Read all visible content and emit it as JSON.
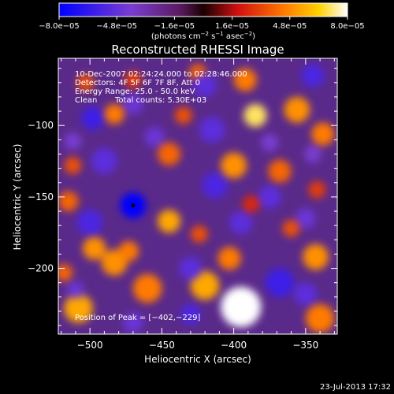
{
  "chart_data": {
    "type": "heatmap",
    "title": "Reconstructed RHESSI Image",
    "xlabel": "Heliocentric X (arcsec)",
    "ylabel": "Heliocentric Y (arcsec)",
    "xlim": [
      -522,
      -328
    ],
    "ylim": [
      -246,
      -53
    ],
    "xticks": [
      -500,
      -450,
      -400,
      -350
    ],
    "xtick_labels": [
      "−500",
      "−450",
      "−400",
      "−350"
    ],
    "yticks": [
      -100,
      -150,
      -200
    ],
    "ytick_labels": [
      "−100",
      "−150",
      "−200"
    ],
    "colorbar": {
      "min": -8e-05,
      "max": 8e-05,
      "tick_labels": [
        "−8.0e−05",
        "−4.8e−05",
        "−1.6e−05",
        "1.6e−05",
        "4.8e−05",
        "8.0e−05"
      ],
      "tick_values": [
        -8e-05,
        -4.8e-05,
        -1.6e-05,
        1.6e-05,
        4.8e-05,
        8e-05
      ],
      "units_main": "(photons cm",
      "units_sup1": "−2",
      "units_mid": " s",
      "units_sup2": "−1",
      "units_end": " asec",
      "units_sup3": "−2",
      "units_close": ")"
    },
    "annotations": {
      "time_range": "10-Dec-2007 02:24:24.000 to 02:28:46.000",
      "detectors": "Detectors: 4F 5F 6F 7F 8F, Att 0",
      "energy": "Energy Range: 25.0 - 50.0 keV",
      "method": "Clean",
      "counts": "Total counts: 5.30E+03",
      "peak": "Position of Peak = [−402,−229]"
    },
    "blobs": [
      {
        "x": -395,
        "y": -227,
        "v": 8e-05,
        "r": 14
      },
      {
        "x": -420,
        "y": -212,
        "v": 5.5e-05,
        "r": 10
      },
      {
        "x": -403,
        "y": -193,
        "v": 4.5e-05,
        "r": 8
      },
      {
        "x": -460,
        "y": -214,
        "v": 4.5e-05,
        "r": 10
      },
      {
        "x": -483,
        "y": -196,
        "v": 5e-05,
        "r": 9
      },
      {
        "x": -497,
        "y": -186,
        "v": 5e-05,
        "r": 8
      },
      {
        "x": -508,
        "y": -228,
        "v": 5.5e-05,
        "r": 10
      },
      {
        "x": -518,
        "y": -203,
        "v": 4e-05,
        "r": 6
      },
      {
        "x": -473,
        "y": -188,
        "v": 4.5e-05,
        "r": 7
      },
      {
        "x": -385,
        "y": -93,
        "v": 7e-05,
        "r": 8
      },
      {
        "x": -356,
        "y": -89,
        "v": 5e-05,
        "r": 9
      },
      {
        "x": -338,
        "y": -106,
        "v": 4.5e-05,
        "r": 8
      },
      {
        "x": -392,
        "y": -68,
        "v": 4.5e-05,
        "r": 8
      },
      {
        "x": -483,
        "y": -92,
        "v": 4.5e-05,
        "r": 7
      },
      {
        "x": -435,
        "y": -93,
        "v": 3.5e-05,
        "r": 6
      },
      {
        "x": -445,
        "y": -120,
        "v": 4e-05,
        "r": 8
      },
      {
        "x": -400,
        "y": -128,
        "v": 5e-05,
        "r": 9
      },
      {
        "x": -368,
        "y": -132,
        "v": 4e-05,
        "r": 8
      },
      {
        "x": -342,
        "y": -145,
        "v": 3e-05,
        "r": 6
      },
      {
        "x": -445,
        "y": -167,
        "v": 5.5e-05,
        "r": 8
      },
      {
        "x": -424,
        "y": -176,
        "v": 3.5e-05,
        "r": 6
      },
      {
        "x": -343,
        "y": -192,
        "v": 5e-05,
        "r": 9
      },
      {
        "x": -360,
        "y": -172,
        "v": 3.5e-05,
        "r": 6
      },
      {
        "x": -340,
        "y": -235,
        "v": 4.5e-05,
        "r": 10
      },
      {
        "x": -515,
        "y": -153,
        "v": 4e-05,
        "r": 7
      },
      {
        "x": -512,
        "y": -128,
        "v": 3.5e-05,
        "r": 6
      },
      {
        "x": -503,
        "y": -70,
        "v": 3.5e-05,
        "r": 6
      },
      {
        "x": -470,
        "y": -68,
        "v": 3e-05,
        "r": 6
      },
      {
        "x": -425,
        "y": -63,
        "v": 4e-05,
        "r": 6
      },
      {
        "x": -388,
        "y": -155,
        "v": 2.5e-05,
        "r": 6
      },
      {
        "x": -470,
        "y": -156,
        "v": -8e-05,
        "r": 9
      },
      {
        "x": -413,
        "y": -142,
        "v": -5.5e-05,
        "r": 9
      },
      {
        "x": -375,
        "y": -150,
        "v": -5e-05,
        "r": 8
      },
      {
        "x": -395,
        "y": -168,
        "v": -5e-05,
        "r": 8
      },
      {
        "x": -368,
        "y": -210,
        "v": -6e-05,
        "r": 10
      },
      {
        "x": -350,
        "y": -218,
        "v": -5e-05,
        "r": 8
      },
      {
        "x": -430,
        "y": -200,
        "v": -5e-05,
        "r": 8
      },
      {
        "x": -500,
        "y": -168,
        "v": -5.5e-05,
        "r": 9
      },
      {
        "x": -490,
        "y": -125,
        "v": -5e-05,
        "r": 9
      },
      {
        "x": -498,
        "y": -95,
        "v": -6e-05,
        "r": 8
      },
      {
        "x": -455,
        "y": -108,
        "v": -4.5e-05,
        "r": 7
      },
      {
        "x": -415,
        "y": -103,
        "v": -5e-05,
        "r": 9
      },
      {
        "x": -420,
        "y": -72,
        "v": -5e-05,
        "r": 8
      },
      {
        "x": -470,
        "y": -85,
        "v": -4.5e-05,
        "r": 7
      },
      {
        "x": -512,
        "y": -111,
        "v": -4e-05,
        "r": 6
      },
      {
        "x": -345,
        "y": -65,
        "v": -5.5e-05,
        "r": 8
      },
      {
        "x": -350,
        "y": -165,
        "v": -4.5e-05,
        "r": 7
      },
      {
        "x": -510,
        "y": -215,
        "v": -4.5e-05,
        "r": 6
      },
      {
        "x": -470,
        "y": -238,
        "v": -4.5e-05,
        "r": 7
      },
      {
        "x": -430,
        "y": -232,
        "v": -5.5e-05,
        "r": 7
      },
      {
        "x": -345,
        "y": -120,
        "v": -4e-05,
        "r": 6
      },
      {
        "x": -375,
        "y": -112,
        "v": -4e-05,
        "r": 6
      }
    ]
  },
  "footer": {
    "timestamp": "23-Jul-2013 17:32"
  }
}
